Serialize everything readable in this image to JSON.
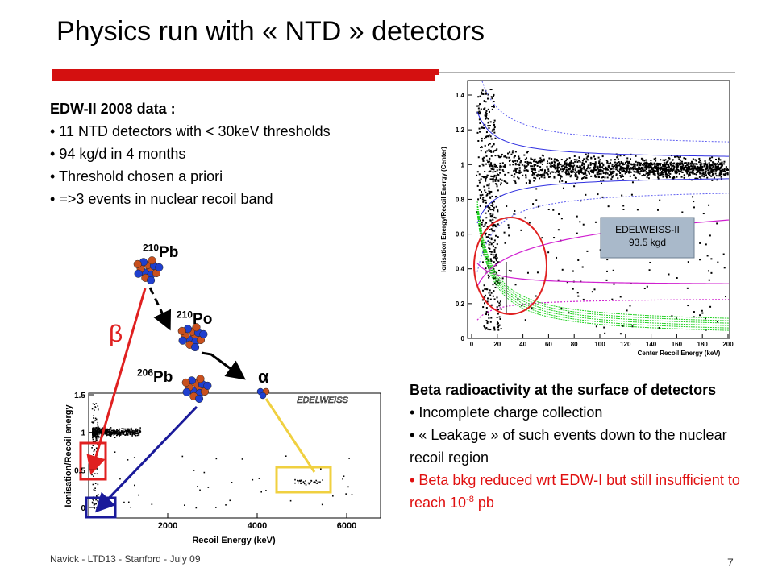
{
  "title": "Physics run with « NTD » detectors",
  "left_block": {
    "heading": "EDW-II 2008 data :",
    "bullets": [
      "11 NTD detectors with < 30keV thresholds",
      "94 kg/d in 4 months",
      "Threshold chosen a priori",
      "=>3 events in nuclear recoil band"
    ]
  },
  "decay": {
    "parent": {
      "mass": "210",
      "symbol": "Pb"
    },
    "daughter": {
      "mass": "210",
      "symbol": "Po"
    },
    "final": {
      "mass": "206",
      "symbol": "Pb"
    },
    "alpha": "α",
    "beta": "β"
  },
  "upper_plot": {
    "y_label": "Ionisation Energy/Recoil Energy (Center)",
    "x_label": "Center Recoil Energy (keV)",
    "yticks": [
      0,
      0.2,
      0.4,
      0.6,
      0.8,
      1,
      1.2,
      1.4
    ],
    "xticks": [
      0,
      20,
      40,
      60,
      80,
      100,
      120,
      140,
      160,
      180,
      200
    ],
    "legend": [
      "EDELWEISS-II",
      "93.5 kgd"
    ]
  },
  "lower_plot": {
    "y_label": "Ionisation/Recoil energy",
    "x_label": "Recoil Energy (keV)",
    "yticks": [
      0,
      0.5,
      1,
      1.5
    ],
    "xticks": [
      2000,
      4000,
      6000
    ],
    "tag": "EDELWEISS"
  },
  "right_block": {
    "heading": "Beta radioactivity at the surface of detectors",
    "bullets": [
      "Incomplete charge collection",
      "« Leakage » of such events down to the nuclear recoil region"
    ],
    "red_bullet": {
      "text": "Beta bkg reduced wrt EDW-I but still insufficient to reach 10",
      "exponent": "-8",
      "unit": " pb"
    }
  },
  "footer": {
    "left": "Navick - LTD13 - Stanford - July 09",
    "page": "7"
  }
}
